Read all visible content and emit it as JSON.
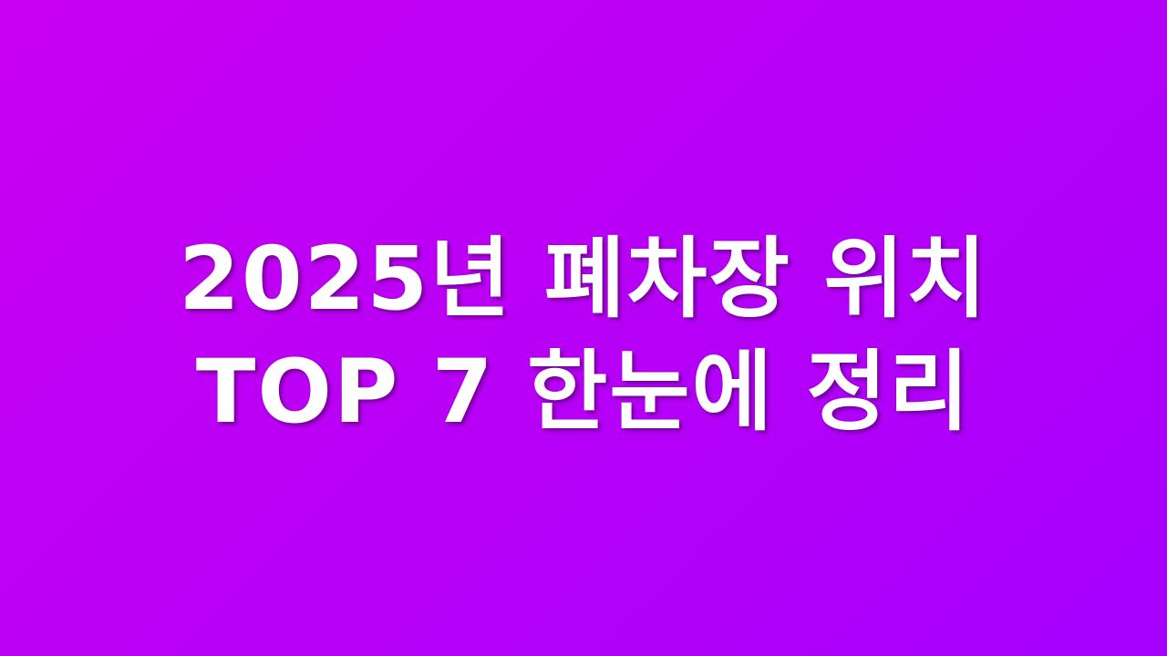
{
  "background": {
    "gradient_start": "#c800f2",
    "gradient_end": "#a600ff"
  },
  "title": {
    "line1": "2025년 폐차장 위치",
    "line2": "TOP 7 한눈에 정리",
    "color": "#ffffff"
  }
}
